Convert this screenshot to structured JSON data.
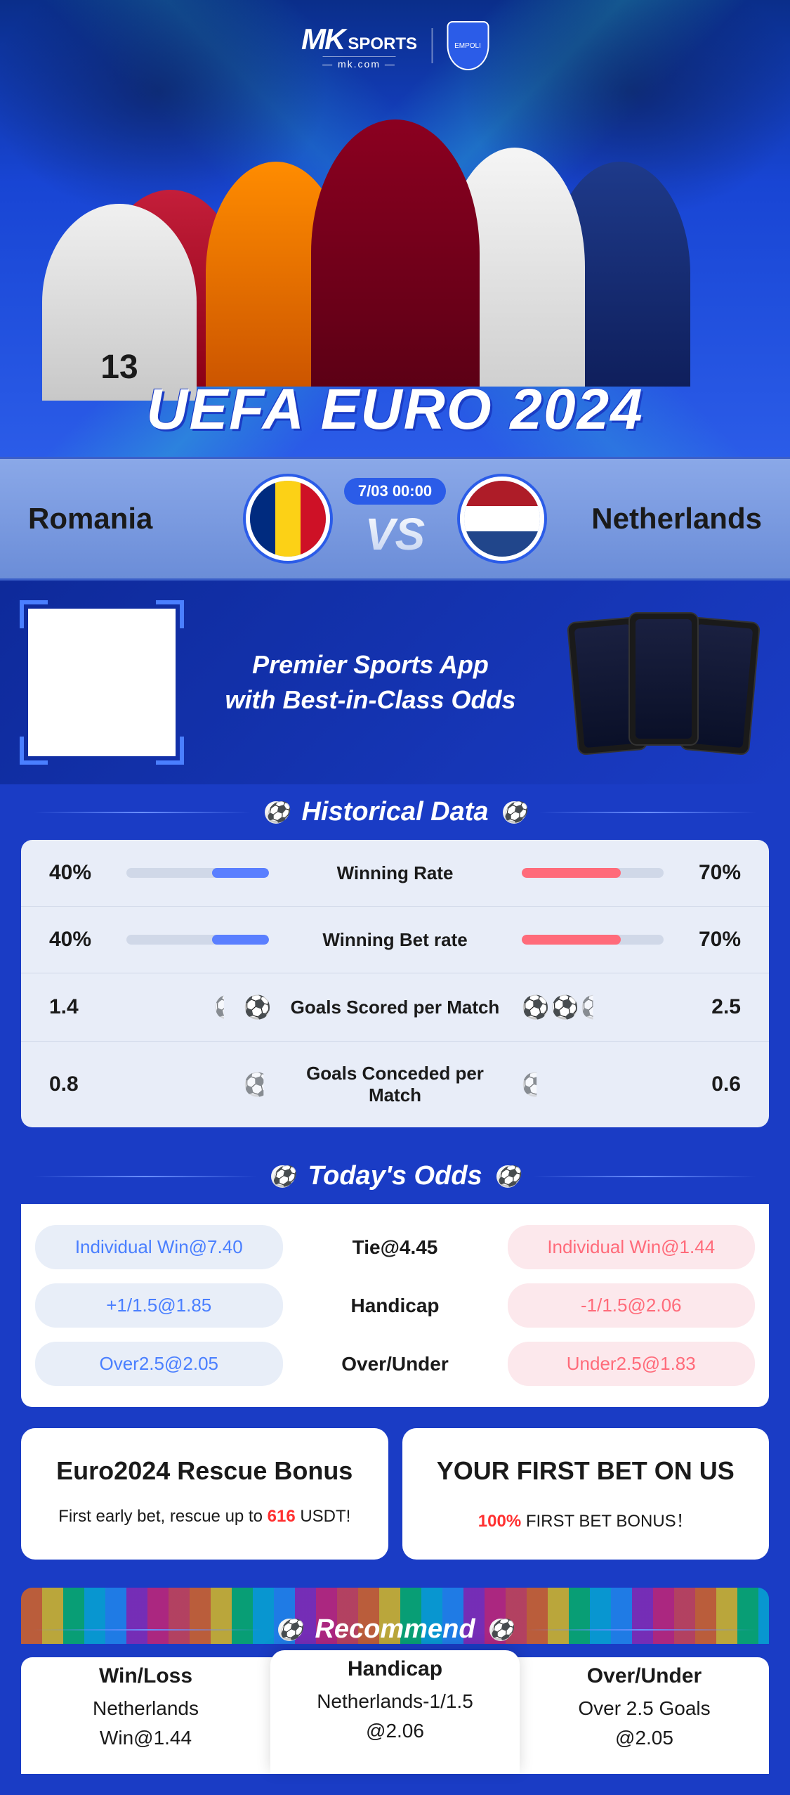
{
  "hero": {
    "brand_mk": "MK",
    "brand_sports": "SPORTS",
    "brand_url": "— mk.com —",
    "title": "UEFA EURO 2024"
  },
  "match": {
    "team1": "Romania",
    "team2": "Netherlands",
    "datetime": "7/03 00:00",
    "vs": "VS",
    "team1_flag_colors": [
      "#002b7f",
      "#fcd116",
      "#ce1126"
    ],
    "team2_flag_colors": [
      "#ae1c28",
      "#ffffff",
      "#21468b"
    ]
  },
  "promo": {
    "line1": "Premier Sports App",
    "line2": "with Best-in-Class Odds"
  },
  "historical": {
    "title": "Historical Data",
    "rows": [
      {
        "label": "Winning Rate",
        "left_val": "40%",
        "right_val": "70%",
        "left_pct": 40,
        "right_pct": 70,
        "type": "bar"
      },
      {
        "label": "Winning Bet rate",
        "left_val": "40%",
        "right_val": "70%",
        "left_pct": 40,
        "right_pct": 70,
        "type": "bar"
      },
      {
        "label": "Goals Scored per Match",
        "left_val": "1.4",
        "right_val": "2.5",
        "left_balls": 1.4,
        "right_balls": 2.5,
        "type": "balls"
      },
      {
        "label": "Goals Conceded per Match",
        "left_val": "0.8",
        "right_val": "0.6",
        "left_balls": 0.8,
        "right_balls": 0.6,
        "type": "balls"
      }
    ]
  },
  "odds": {
    "title": "Today's Odds",
    "rows": [
      {
        "left": "Individual Win@7.40",
        "center": "Tie@4.45",
        "right": "Individual Win@1.44"
      },
      {
        "left": "+1/1.5@1.85",
        "center": "Handicap",
        "right": "-1/1.5@2.06"
      },
      {
        "left": "Over2.5@2.05",
        "center": "Over/Under",
        "right": "Under2.5@1.83"
      }
    ]
  },
  "bonuses": [
    {
      "title": "Euro2024 Rescue Bonus",
      "text_before": "First early bet, rescue up to ",
      "highlight": "616",
      "text_after": " USDT!"
    },
    {
      "title": "YOUR FIRST BET ON US",
      "text_before": "",
      "highlight": "100%",
      "text_after": " FIRST BET BONUS！"
    }
  ],
  "recommend": {
    "title": "Recommend",
    "cols": [
      {
        "title": "Win/Loss",
        "line1": "Netherlands",
        "line2": "Win@1.44"
      },
      {
        "title": "Handicap",
        "line1": "Netherlands-1/1.5",
        "line2": "@2.06"
      },
      {
        "title": "Over/Under",
        "line1": "Over 2.5 Goals",
        "line2": "@2.05"
      }
    ]
  },
  "colors": {
    "primary_blue": "#1a3cc5",
    "team1_accent": "#5a7fff",
    "team2_accent": "#ff6b7a",
    "card_bg": "#e8edf8",
    "highlight_red": "#ff3030"
  }
}
